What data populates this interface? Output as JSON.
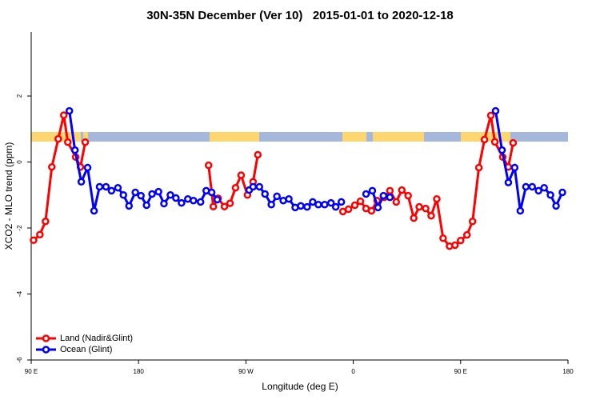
{
  "chart_data": {
    "type": "line",
    "title": "30N-35N December (Ver 10)   2015-01-01 to 2020-12-18",
    "xlabel": "Longitude (deg E)",
    "ylabel": "XCO2 - MLO trend (ppm)",
    "xlim": [
      90,
      540
    ],
    "xticks": [
      {
        "value": 90,
        "label": "90 E"
      },
      180,
      {
        "value": 270,
        "label": "90 W"
      },
      {
        "value": 360,
        "label": "0"
      },
      {
        "value": 450,
        "label": "90 E"
      },
      {
        "value": 540,
        "label": "180"
      }
    ],
    "ylim": [
      -6,
      3.94
    ],
    "yticks": [
      -6,
      -4,
      -2,
      0,
      2
    ],
    "legend": "bottom-left",
    "series": [
      {
        "name": "Land (Nadir&Glint)",
        "color": "#ff0000",
        "x": [
          92,
          97.3,
          102,
          107.3,
          112.7,
          117.3,
          120.7,
          127.3,
          131.3,
          135.3,
          null,
          238.7,
          242.7,
          246.7,
          252,
          256.7,
          261.3,
          266,
          271.3,
          276,
          280,
          null,
          351.3,
          356,
          361.3,
          366,
          370.7,
          375.3,
          380,
          386,
          390.7,
          396,
          400.7,
          406,
          410.7,
          415.3,
          420.7,
          425.3,
          430,
          435.3,
          440.7,
          445.3,
          450,
          455.3,
          460,
          465.3,
          470,
          475.3,
          478.7,
          485.3,
          490,
          494
        ],
        "values": [
          -2.37,
          -2.2,
          -1.8,
          -0.15,
          0.7,
          1.42,
          0.6,
          0.15,
          -0.15,
          0.6,
          null,
          -0.1,
          -1.35,
          -1.1,
          -1.35,
          -1.25,
          -0.78,
          -0.4,
          -1.0,
          -0.6,
          0.22,
          null,
          -1.5,
          -1.43,
          -1.31,
          -1.19,
          -1.41,
          -1.48,
          -1.17,
          -1.07,
          -0.87,
          -1.21,
          -0.85,
          -1.02,
          -1.7,
          -1.36,
          -1.41,
          -1.63,
          -1.12,
          -2.31,
          -2.55,
          -2.52,
          -2.38,
          -2.21,
          -1.8,
          -0.17,
          0.68,
          1.41,
          0.61,
          0.15,
          -0.15,
          0.58
        ]
      },
      {
        "name": "Ocean (Glint)",
        "color": "#0000ff",
        "x": [
          122,
          126.7,
          132,
          137.3,
          142.7,
          147.3,
          152.7,
          157.3,
          162.7,
          167.3,
          172,
          177.3,
          182,
          186.7,
          191.3,
          196.7,
          201.3,
          206.7,
          211.3,
          216,
          221.3,
          226,
          232,
          236.7,
          241.3,
          246,
          null,
          272.7,
          276,
          281.3,
          286,
          291.3,
          296,
          301.3,
          306,
          311.3,
          316,
          321.3,
          326,
          330.7,
          336,
          341.3,
          345.3,
          350,
          null,
          370.7,
          376,
          380.7,
          385.3,
          390.7,
          null,
          479.3,
          484.7,
          490,
          495.3,
          500,
          504.7,
          510,
          515.3,
          520,
          525.3,
          530,
          535.3
        ],
        "values": [
          1.55,
          0.36,
          -0.6,
          -0.17,
          -1.48,
          -0.75,
          -0.75,
          -0.87,
          -0.78,
          -1.0,
          -1.33,
          -0.92,
          -1.02,
          -1.31,
          -0.97,
          -0.9,
          -1.26,
          -1.0,
          -1.09,
          -1.24,
          -1.12,
          -1.17,
          -1.21,
          -0.87,
          -0.92,
          -1.14,
          null,
          -0.85,
          -0.75,
          -0.75,
          -0.97,
          -1.29,
          -1.04,
          -1.17,
          -1.12,
          -1.38,
          -1.33,
          -1.36,
          -1.21,
          -1.29,
          -1.29,
          -1.24,
          -1.36,
          -1.21,
          null,
          -0.97,
          -0.87,
          -1.38,
          -1.02,
          -1.07,
          null,
          1.55,
          0.36,
          -0.62,
          -0.17,
          -1.48,
          -0.75,
          -0.75,
          -0.87,
          -0.78,
          -1.0,
          -1.33,
          -0.92
        ]
      }
    ]
  }
}
